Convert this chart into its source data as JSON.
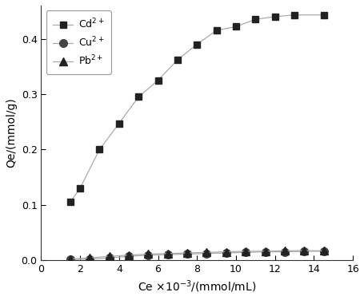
{
  "cd_x": [
    1.5,
    2.0,
    3.0,
    4.0,
    5.0,
    6.0,
    7.0,
    8.0,
    9.0,
    10.0,
    11.0,
    12.0,
    13.0,
    14.5
  ],
  "cd_y": [
    0.105,
    0.13,
    0.2,
    0.247,
    0.295,
    0.325,
    0.362,
    0.39,
    0.415,
    0.422,
    0.435,
    0.44,
    0.443,
    0.443
  ],
  "cu_x": [
    1.5,
    2.5,
    3.5,
    4.5,
    5.5,
    6.5,
    7.5,
    8.5,
    9.5,
    10.5,
    11.5,
    12.5,
    13.5,
    14.5
  ],
  "cu_y": [
    0.001,
    0.002,
    0.004,
    0.007,
    0.009,
    0.01,
    0.011,
    0.012,
    0.013,
    0.014,
    0.015,
    0.015,
    0.016,
    0.016
  ],
  "pb_x": [
    1.5,
    2.5,
    3.5,
    4.5,
    5.5,
    6.5,
    7.5,
    8.5,
    9.5,
    10.5,
    11.5,
    12.5,
    13.5,
    14.5
  ],
  "pb_y": [
    0.002,
    0.004,
    0.007,
    0.009,
    0.011,
    0.012,
    0.013,
    0.014,
    0.015,
    0.016,
    0.016,
    0.017,
    0.017,
    0.017
  ],
  "xlabel": "Ce ×10$^{-3}$/(mmol/mL)",
  "ylabel": "Qe/(mmol/g)",
  "xlim": [
    0,
    16
  ],
  "ylim": [
    0,
    0.46
  ],
  "xticks": [
    0,
    2,
    4,
    6,
    8,
    10,
    12,
    14,
    16
  ],
  "yticks": [
    0.0,
    0.1,
    0.2,
    0.3,
    0.4
  ],
  "line_color": "#aaaaaa",
  "marker_color_cd": "#222222",
  "marker_color_cu": "#444444",
  "marker_color_pb": "#222222",
  "legend_labels": [
    "Cd$^{2+}$",
    "Cu$^{2+}$",
    "Pb$^{2+}$"
  ],
  "figsize": [
    4.56,
    3.76
  ],
  "dpi": 100
}
